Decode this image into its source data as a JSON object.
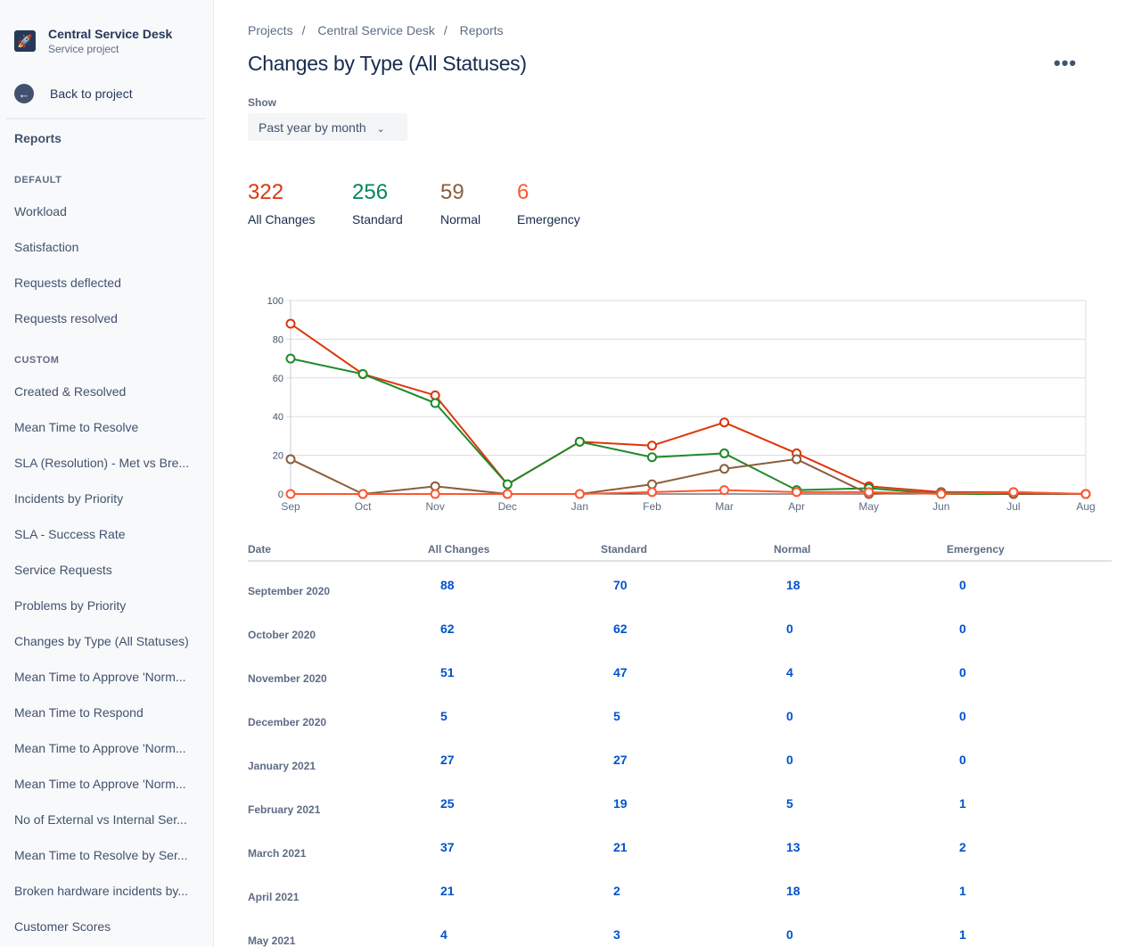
{
  "sidebar": {
    "project_name": "Central Service Desk",
    "project_type": "Service project",
    "back_label": "Back to project",
    "reports_label": "Reports",
    "default_heading": "DEFAULT",
    "default_items": [
      "Workload",
      "Satisfaction",
      "Requests deflected",
      "Requests resolved"
    ],
    "custom_heading": "CUSTOM",
    "custom_items": [
      "Created & Resolved",
      "Mean Time to Resolve",
      "SLA (Resolution) - Met vs Bre...",
      "Incidents by Priority",
      "SLA - Success Rate",
      "Service Requests",
      "Problems by Priority",
      "Changes by Type (All Statuses)",
      "Mean Time to Approve 'Norm...",
      "Mean Time to Respond",
      "Mean Time to Approve 'Norm...",
      "Mean Time to Approve 'Norm...",
      "No of External vs Internal Ser...",
      "Mean Time to Resolve by Ser...",
      "Broken hardware incidents by...",
      "Customer Scores"
    ]
  },
  "breadcrumbs": [
    "Projects",
    "Central Service Desk",
    "Reports"
  ],
  "title": "Changes by Type (All Statuses)",
  "show_label": "Show",
  "show_value": "Past year by month",
  "stats": [
    {
      "value": "322",
      "label": "All Changes",
      "color": "#de350b"
    },
    {
      "value": "256",
      "label": "Standard",
      "color": "#00875a"
    },
    {
      "value": "59",
      "label": "Normal",
      "color": "#8b5e3c"
    },
    {
      "value": "6",
      "label": "Emergency",
      "color": "#ff5630"
    }
  ],
  "chart_data": {
    "type": "line",
    "categories": [
      "Sep",
      "Oct",
      "Nov",
      "Dec",
      "Jan",
      "Feb",
      "Mar",
      "Apr",
      "May",
      "Jun",
      "Jul",
      "Aug"
    ],
    "ylim": [
      0,
      100
    ],
    "yticks": [
      0,
      20,
      40,
      60,
      80,
      100
    ],
    "grid": true,
    "series": [
      {
        "name": "All Changes",
        "color": "#de350b",
        "values": [
          88,
          62,
          51,
          5,
          27,
          25,
          37,
          21,
          4,
          1,
          1,
          0
        ]
      },
      {
        "name": "Standard",
        "color": "#1e8a28",
        "values": [
          70,
          62,
          47,
          5,
          27,
          19,
          21,
          2,
          3,
          0,
          0,
          0
        ]
      },
      {
        "name": "Normal",
        "color": "#8b5e3c",
        "values": [
          18,
          0,
          4,
          0,
          0,
          5,
          13,
          18,
          0,
          1,
          0,
          0
        ]
      },
      {
        "name": "Emergency",
        "color": "#ff5630",
        "values": [
          0,
          0,
          0,
          0,
          0,
          1,
          2,
          1,
          1,
          0,
          1,
          0
        ]
      }
    ]
  },
  "table": {
    "headers": [
      "Date",
      "All Changes",
      "Standard",
      "Normal",
      "Emergency"
    ],
    "rows": [
      [
        "September 2020",
        "88",
        "70",
        "18",
        "0"
      ],
      [
        "October 2020",
        "62",
        "62",
        "0",
        "0"
      ],
      [
        "November 2020",
        "51",
        "47",
        "4",
        "0"
      ],
      [
        "December 2020",
        "5",
        "5",
        "0",
        "0"
      ],
      [
        "January 2021",
        "27",
        "27",
        "0",
        "0"
      ],
      [
        "February 2021",
        "25",
        "19",
        "5",
        "1"
      ],
      [
        "March 2021",
        "37",
        "21",
        "13",
        "2"
      ],
      [
        "April 2021",
        "21",
        "2",
        "18",
        "1"
      ],
      [
        "May 2021",
        "4",
        "3",
        "0",
        "1"
      ]
    ]
  }
}
